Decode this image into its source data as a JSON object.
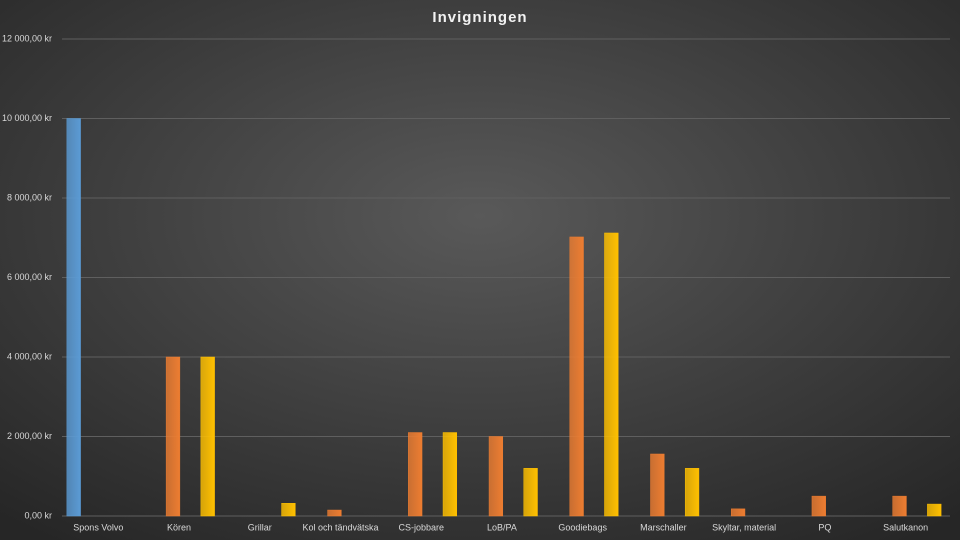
{
  "chart_data": {
    "type": "bar",
    "title": "Invigningen",
    "categories": [
      "Spons Volvo",
      "Kören",
      "Grillar",
      "Kol och tändvätska",
      "CS-jobbare",
      "LoB/PA",
      "Goodiebags",
      "Marschaller",
      "Skyltar, material",
      "PQ",
      "Salutkanon"
    ],
    "series": [
      {
        "color": "#5b9bd5",
        "values": [
          10000,
          null,
          null,
          null,
          null,
          null,
          null,
          null,
          null,
          null,
          null
        ]
      },
      {
        "color": "#ed7d31",
        "values": [
          null,
          4000,
          null,
          150,
          2100,
          2000,
          7020,
          1560,
          180,
          500,
          500
        ]
      },
      {
        "color": "#ffc000",
        "values": [
          null,
          4000,
          320,
          null,
          2100,
          1200,
          7120,
          1200,
          null,
          null,
          300
        ]
      }
    ],
    "ylim": [
      0,
      12000
    ],
    "yticks": [
      {
        "value": 0,
        "label": "0,00 kr"
      },
      {
        "value": 2000,
        "label": "2 000,00 kr"
      },
      {
        "value": 4000,
        "label": "4 000,00 kr"
      },
      {
        "value": 6000,
        "label": "6 000,00 kr"
      },
      {
        "value": 8000,
        "label": "8 000,00 kr"
      },
      {
        "value": 10000,
        "label": "10 000,00 kr"
      },
      {
        "value": 12000,
        "label": "12 000,00 kr"
      }
    ],
    "grid": true
  }
}
